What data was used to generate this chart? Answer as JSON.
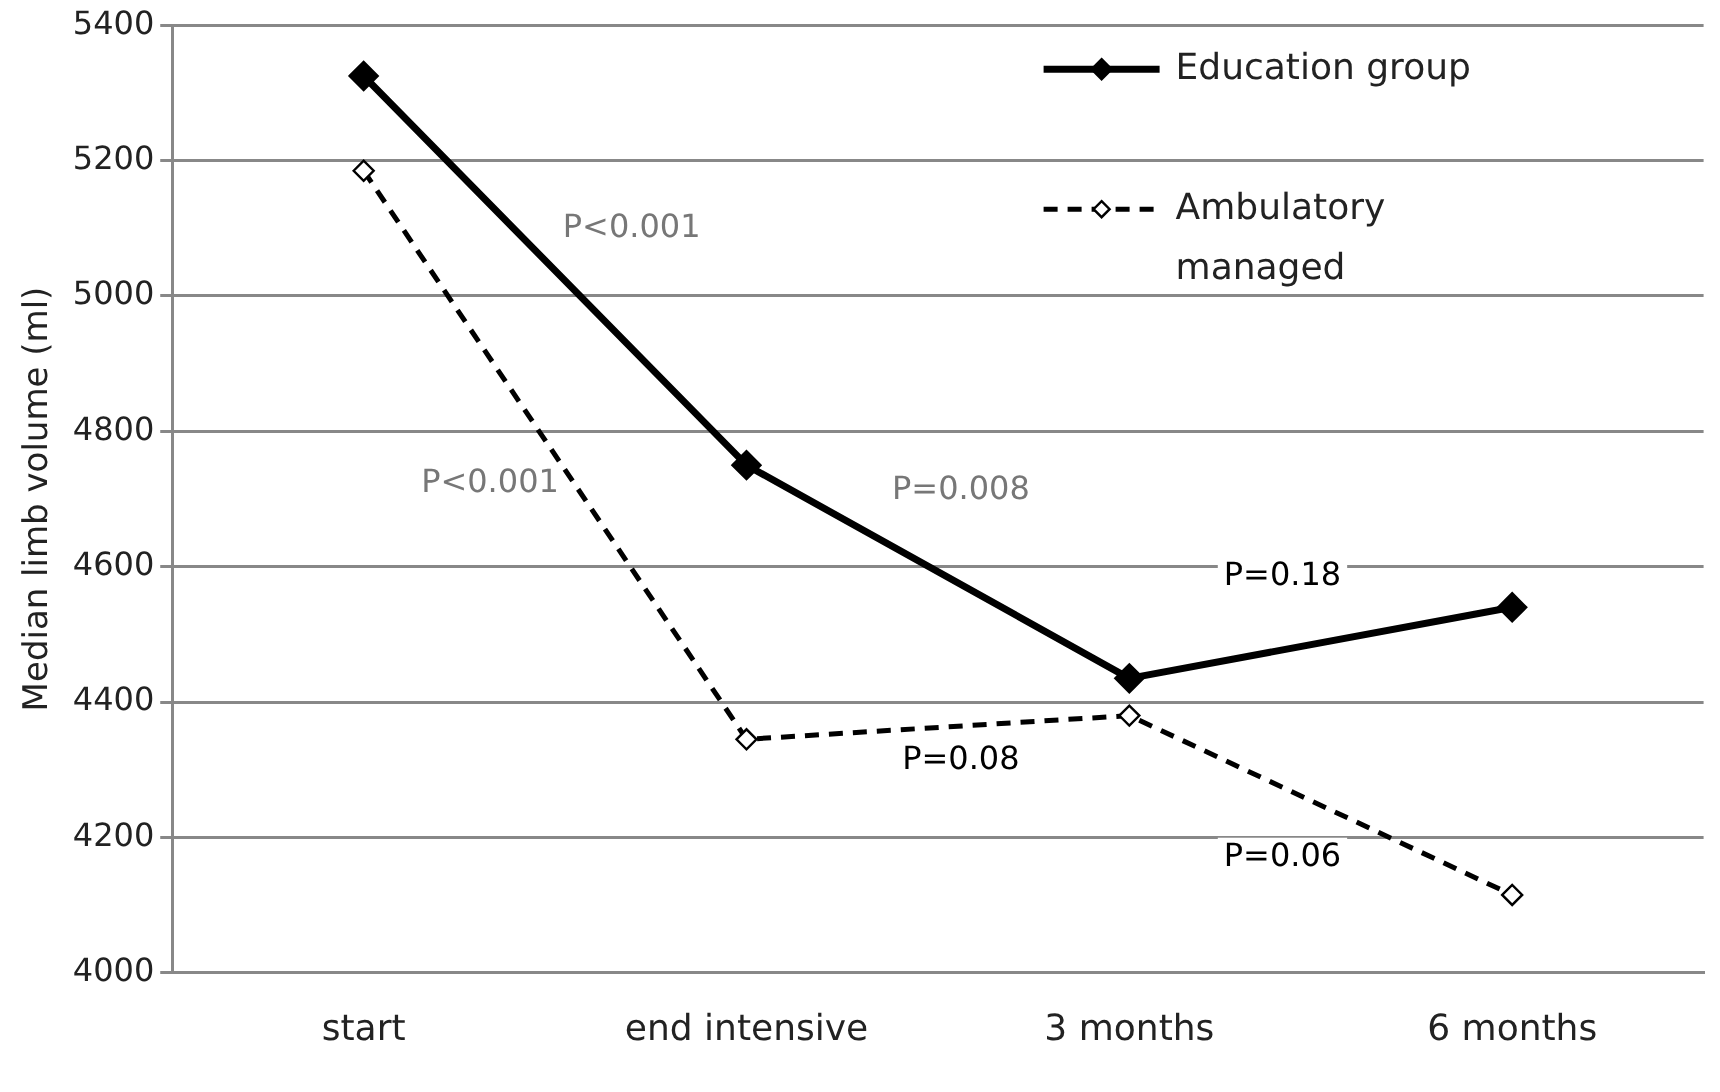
{
  "chart_data": {
    "type": "line",
    "ylabel": "Median limb volume (ml)",
    "categories": [
      "start",
      "end intensive",
      "3 months",
      "6 months"
    ],
    "series": [
      {
        "name": "Education group",
        "color": "#000000",
        "values": [
          5325,
          4750,
          4435,
          4540
        ],
        "line_style": "solid"
      },
      {
        "name": "Ambulatory managed",
        "color": "#000000",
        "values": [
          5185,
          4345,
          4380,
          4115
        ],
        "line_style": "dashed"
      }
    ],
    "ylim": [
      4000,
      5400
    ],
    "yticks": [
      4000,
      4200,
      4400,
      4600,
      4800,
      5000,
      5200,
      5400
    ],
    "grid": "y",
    "legend": "top right",
    "marker": "diamond",
    "annotations": [
      "P<0.001",
      "P<0.001",
      "P=0.008",
      "P=0.18",
      "P=0.08",
      "P=0.06"
    ]
  }
}
